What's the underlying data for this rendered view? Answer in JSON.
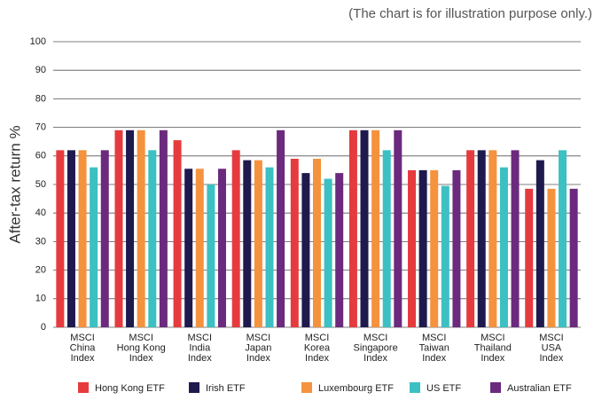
{
  "chart_data": {
    "type": "bar",
    "note": "(The chart is for illustration purpose only.)",
    "y_label": "After-tax return %",
    "categories": [
      "MSCI\nChina\nIndex",
      "MSCI\nHong Kong\nIndex",
      "MSCI\nIndia\nIndex",
      "MSCI\nJapan\nIndex",
      "MSCI\nKorea\nIndex",
      "MSCI\nSingapore\nIndex",
      "MSCI\nTaiwan\nIndex",
      "MSCI\nThailand\nIndex",
      "MSCI\nUSA\nIndex"
    ],
    "series": [
      {
        "name": "Hong Kong ETF",
        "color": "#e63b3e",
        "values": [
          62,
          69,
          65.5,
          62,
          59,
          69,
          55,
          62,
          48.5
        ]
      },
      {
        "name": "Irish ETF",
        "color": "#1e1a4d",
        "values": [
          62,
          69,
          55.5,
          58.5,
          54,
          69,
          55,
          62,
          58.5
        ]
      },
      {
        "name": "Luxembourg ETF",
        "color": "#f5923e",
        "values": [
          62,
          69,
          55.5,
          58.5,
          59,
          69,
          55,
          62,
          48.5
        ]
      },
      {
        "name": "US ETF",
        "color": "#3cc0c2",
        "values": [
          56,
          62,
          50,
          56,
          52,
          62,
          49.5,
          56,
          62
        ]
      },
      {
        "name": "Australian ETF",
        "color": "#6b2a7d",
        "values": [
          62,
          69,
          55.5,
          69,
          54,
          69,
          55,
          62,
          48.5
        ]
      }
    ],
    "ylim": [
      0,
      100
    ],
    "yticks": [
      0,
      10,
      20,
      30,
      40,
      50,
      60,
      70,
      80,
      90,
      100
    ],
    "grid": true
  }
}
